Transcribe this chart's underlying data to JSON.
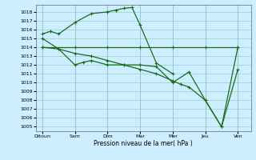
{
  "xlabel": "Pression niveau de la mer( hPa )",
  "background_color": "#cceeff",
  "grid_color": "#99cccc",
  "line_color": "#1a6b1a",
  "x_labels": [
    "Ditoun",
    "Sam",
    "Dim",
    "Mar",
    "Mer",
    "Jeu",
    "Ven"
  ],
  "x_positions": [
    0,
    1,
    2,
    3,
    4,
    5,
    6
  ],
  "ylim": [
    1004.5,
    1018.8
  ],
  "yticks": [
    1005,
    1006,
    1007,
    1008,
    1009,
    1010,
    1011,
    1012,
    1013,
    1014,
    1015,
    1016,
    1017,
    1018
  ],
  "series_a_x": [
    0.0,
    0.25,
    0.5,
    1.0,
    1.5,
    2.0,
    2.25,
    2.5,
    2.75,
    3.0,
    3.5,
    4.0
  ],
  "series_a_y": [
    1015.5,
    1015.8,
    1015.5,
    1016.8,
    1017.8,
    1018.0,
    1018.2,
    1018.4,
    1018.5,
    1016.5,
    1012.2,
    1011.0
  ],
  "series_b_x": [
    0.0,
    1.0,
    2.0,
    3.0,
    4.0,
    5.0,
    6.0
  ],
  "series_b_y": [
    1014.0,
    1014.0,
    1014.0,
    1014.0,
    1014.0,
    1014.0,
    1014.0
  ],
  "series_c_x": [
    0.0,
    0.5,
    1.0,
    1.25,
    1.5,
    2.0,
    2.5,
    3.0,
    3.5,
    4.0,
    4.5,
    5.0,
    5.5,
    6.0
  ],
  "series_c_y": [
    1015.0,
    1013.8,
    1012.0,
    1012.3,
    1012.5,
    1012.0,
    1012.0,
    1012.0,
    1011.8,
    1010.0,
    1011.2,
    1008.0,
    1005.0,
    1011.5
  ],
  "series_d_x": [
    0.0,
    0.5,
    1.0,
    1.5,
    2.0,
    2.5,
    3.0,
    3.5,
    4.0,
    4.25,
    4.5,
    5.0,
    5.5,
    6.0
  ],
  "series_d_y": [
    1014.0,
    1013.8,
    1013.3,
    1013.0,
    1012.5,
    1012.0,
    1011.5,
    1011.0,
    1010.2,
    1009.8,
    1009.5,
    1008.0,
    1005.0,
    1014.0
  ]
}
